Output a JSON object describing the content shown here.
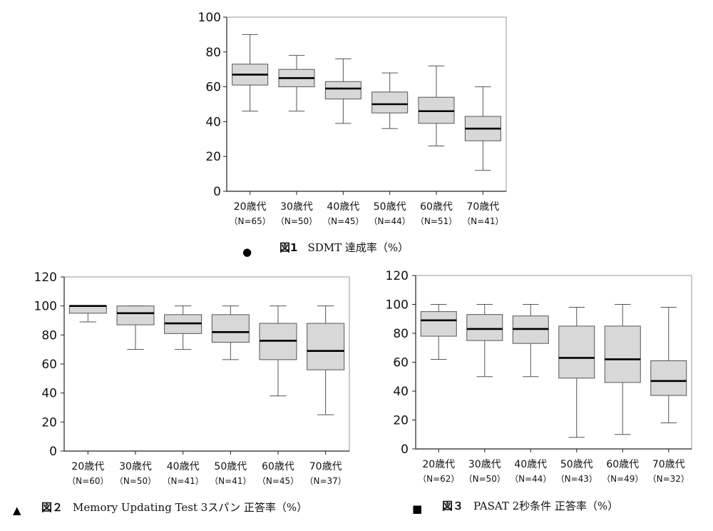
{
  "chart_data": [
    {
      "type": "boxplot",
      "figure_label": "図1",
      "title": "SDMT 達成率（%）",
      "ylim": [
        0,
        100
      ],
      "yticks": [
        0,
        20,
        40,
        60,
        80,
        100
      ],
      "grid": false,
      "categories": [
        "20歳代",
        "30歳代",
        "40歳代",
        "50歳代",
        "60歳代",
        "70歳代"
      ],
      "n_labels": [
        "（N=65）",
        "（N=50）",
        "（N=45）",
        "（N=44）",
        "（N=51）",
        "（N=41）"
      ],
      "boxes": [
        {
          "min": 46,
          "q1": 61,
          "median": 67,
          "q3": 73,
          "max": 90
        },
        {
          "min": 46,
          "q1": 60,
          "median": 65,
          "q3": 70,
          "max": 78
        },
        {
          "min": 39,
          "q1": 53,
          "median": 59,
          "q3": 63,
          "max": 76
        },
        {
          "min": 36,
          "q1": 45,
          "median": 50,
          "q3": 57,
          "max": 68
        },
        {
          "min": 26,
          "q1": 39,
          "median": 46,
          "q3": 54,
          "max": 72
        },
        {
          "min": 12,
          "q1": 29,
          "median": 36,
          "q3": 43,
          "max": 60
        }
      ]
    },
    {
      "type": "boxplot",
      "figure_label": "図２",
      "title": "Memory Updating Test 3スパン 正答率（%）",
      "ylim": [
        0,
        120
      ],
      "yticks": [
        0,
        20,
        40,
        60,
        80,
        100,
        120
      ],
      "grid": false,
      "categories": [
        "20歳代",
        "30歳代",
        "40歳代",
        "50歳代",
        "60歳代",
        "70歳代"
      ],
      "n_labels": [
        "（N=60）",
        "（N=50）",
        "（N=41）",
        "（N=41）",
        "（N=45）",
        "（N=37）"
      ],
      "boxes": [
        {
          "min": 89,
          "q1": 95,
          "median": 100,
          "q3": 100,
          "max": 100
        },
        {
          "min": 70,
          "q1": 87,
          "median": 95,
          "q3": 100,
          "max": 100
        },
        {
          "min": 70,
          "q1": 81,
          "median": 88,
          "q3": 94,
          "max": 100
        },
        {
          "min": 63,
          "q1": 75,
          "median": 82,
          "q3": 94,
          "max": 100
        },
        {
          "min": 38,
          "q1": 63,
          "median": 76,
          "q3": 88,
          "max": 100
        },
        {
          "min": 25,
          "q1": 56,
          "median": 69,
          "q3": 88,
          "max": 100
        }
      ]
    },
    {
      "type": "boxplot",
      "figure_label": "図３",
      "title": "PASAT 2秒条件 正答率（%）",
      "ylim": [
        0,
        120
      ],
      "yticks": [
        0,
        20,
        40,
        60,
        80,
        100,
        120
      ],
      "grid": false,
      "categories": [
        "20歳代",
        "30歳代",
        "40歳代",
        "50歳代",
        "60歳代",
        "70歳代"
      ],
      "n_labels": [
        "（N=62）",
        "（N=50）",
        "（N=44）",
        "（N=43）",
        "（N=49）",
        "（N=32）"
      ],
      "boxes": [
        {
          "min": 62,
          "q1": 78,
          "median": 89,
          "q3": 95,
          "max": 100
        },
        {
          "min": 50,
          "q1": 75,
          "median": 83,
          "q3": 93,
          "max": 100
        },
        {
          "min": 50,
          "q1": 73,
          "median": 83,
          "q3": 92,
          "max": 100
        },
        {
          "min": 8,
          "q1": 49,
          "median": 63,
          "q3": 85,
          "max": 98
        },
        {
          "min": 10,
          "q1": 46,
          "median": 62,
          "q3": 85,
          "max": 100
        },
        {
          "min": 18,
          "q1": 37,
          "median": 47,
          "q3": 61,
          "max": 98
        }
      ]
    }
  ],
  "markers": [
    "●",
    "▲",
    "■"
  ],
  "colors": {
    "box_fill": "#d8d8d8",
    "stroke": "#555555",
    "median": "#000000",
    "frame": "#9a9a9a"
  }
}
